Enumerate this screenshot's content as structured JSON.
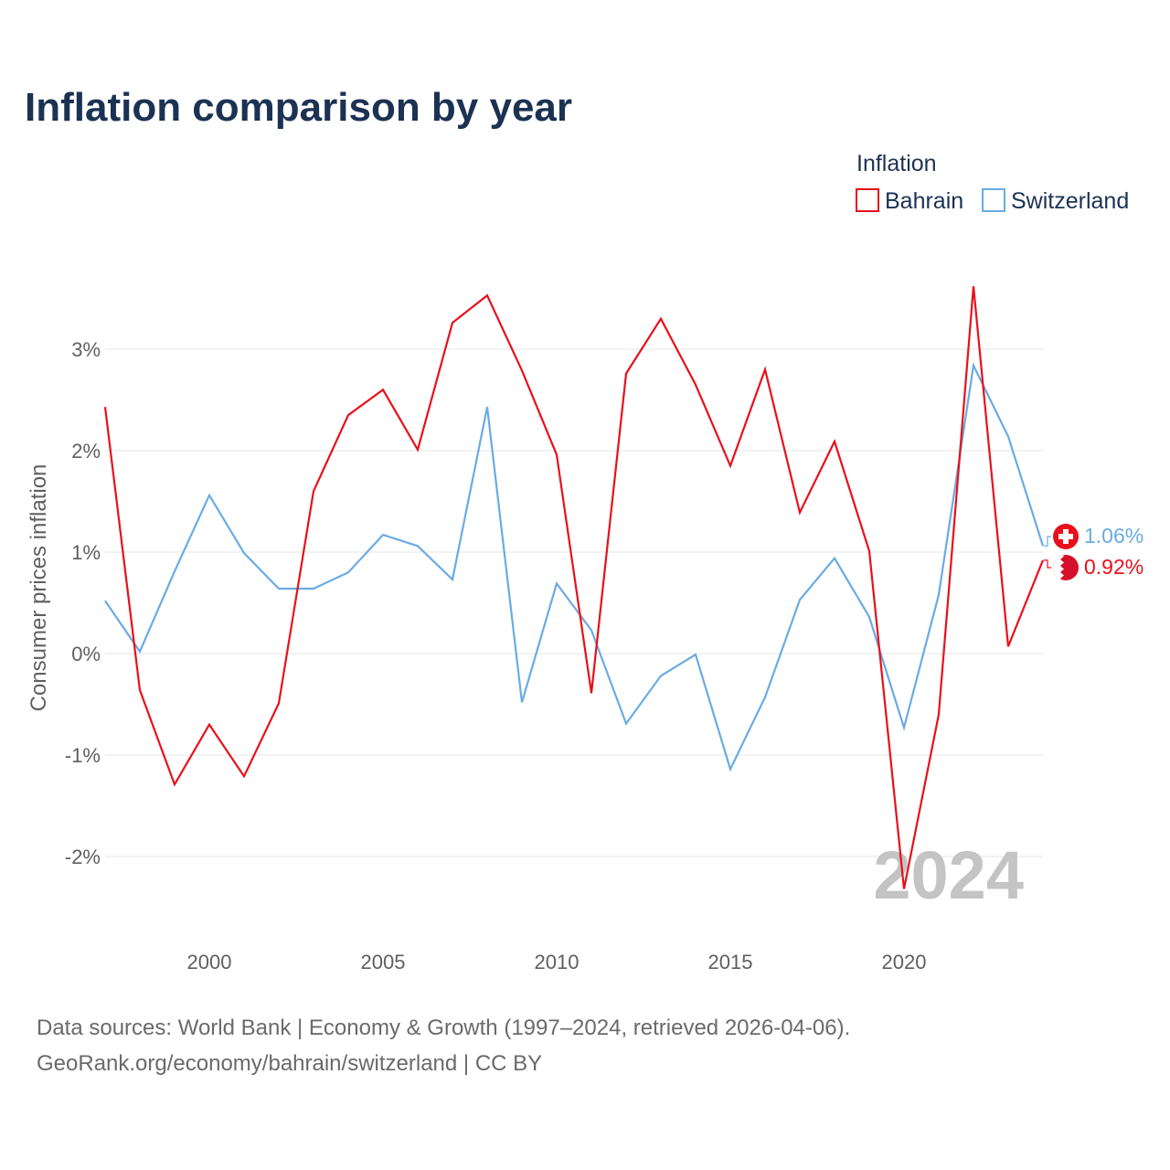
{
  "title": "Inflation comparison by year",
  "legend": {
    "title": "Inflation",
    "items": [
      {
        "label": "Bahrain",
        "color": "#e8101a"
      },
      {
        "label": "Switzerland",
        "color": "#6aabe3"
      }
    ]
  },
  "colors": {
    "title": "#1c3253",
    "text_dark": "#1c3253",
    "tick_text": "#5f5f5f",
    "grid": "#e6e6e6",
    "watermark": "#c4c4c4",
    "source": "#6a6a6a"
  },
  "chart_data": {
    "type": "line",
    "title": "Inflation comparison by year",
    "xlabel": "",
    "ylabel": "Consumer prices inflation",
    "x": [
      1997,
      1998,
      1999,
      2000,
      2001,
      2002,
      2003,
      2004,
      2005,
      2006,
      2007,
      2008,
      2009,
      2010,
      2011,
      2012,
      2013,
      2014,
      2015,
      2016,
      2017,
      2018,
      2019,
      2020,
      2021,
      2022,
      2023,
      2024
    ],
    "xlim": [
      1997,
      2024
    ],
    "ylim": [
      -2.5,
      3.65
    ],
    "x_ticks": [
      2000,
      2005,
      2010,
      2015,
      2020
    ],
    "x_tick_labels": [
      "2000",
      "2005",
      "2010",
      "2015",
      "2020"
    ],
    "y_ticks": [
      -2,
      -1,
      0,
      1,
      2,
      3
    ],
    "y_tick_labels": [
      "-2%",
      "-1%",
      "0%",
      "1%",
      "2%",
      "3%"
    ],
    "grid": true,
    "legend_position": "top-right",
    "series": [
      {
        "name": "Bahrain",
        "color": "#e8101a",
        "values": [
          2.43,
          -0.36,
          -1.29,
          -0.7,
          -1.21,
          -0.49,
          1.6,
          2.35,
          2.6,
          2.01,
          3.26,
          3.53,
          2.79,
          1.96,
          -0.39,
          2.76,
          3.3,
          2.65,
          1.85,
          2.8,
          1.39,
          2.09,
          1.01,
          -2.32,
          -0.6,
          3.62,
          0.07,
          0.92
        ],
        "end_label": "0.92%"
      },
      {
        "name": "Switzerland",
        "color": "#6aabe3",
        "values": [
          0.52,
          0.02,
          0.81,
          1.56,
          0.99,
          0.64,
          0.64,
          0.8,
          1.17,
          1.06,
          0.73,
          2.43,
          -0.48,
          0.69,
          0.23,
          -0.69,
          -0.22,
          -0.01,
          -1.14,
          -0.43,
          0.53,
          0.94,
          0.36,
          -0.73,
          0.58,
          2.84,
          2.14,
          1.06
        ],
        "end_label": "1.06%"
      }
    ],
    "watermark_year": "2024"
  },
  "flags": {
    "switzerland": "switzerland-flag-icon",
    "bahrain": "bahrain-flag-icon"
  },
  "source": {
    "line1": "Data sources: World Bank | Economy & Growth (1997–2024, retrieved 2026-04-06).",
    "line2": "GeoRank.org/economy/bahrain/switzerland | CC BY"
  }
}
